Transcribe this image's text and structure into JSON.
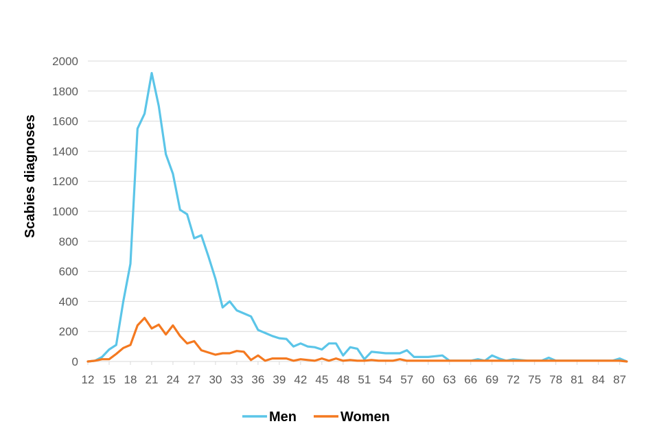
{
  "chart_data": {
    "type": "line",
    "title": "",
    "xlabel": "",
    "ylabel": "Scabies diagnoses",
    "ylim": [
      0,
      2000
    ],
    "yticks": [
      0,
      200,
      400,
      600,
      800,
      1000,
      1200,
      1400,
      1600,
      1800,
      2000
    ],
    "xlim": [
      12,
      88
    ],
    "xticks": [
      12,
      15,
      18,
      21,
      24,
      27,
      30,
      33,
      36,
      39,
      42,
      45,
      48,
      51,
      54,
      57,
      60,
      63,
      66,
      69,
      72,
      75,
      78,
      81,
      84,
      87
    ],
    "grid": true,
    "legend_position": "bottom",
    "series": [
      {
        "name": "Men",
        "color": "#5bc5e8",
        "x": [
          12,
          13,
          14,
          15,
          16,
          17,
          18,
          19,
          20,
          21,
          22,
          23,
          24,
          25,
          26,
          27,
          28,
          29,
          30,
          31,
          32,
          33,
          34,
          35,
          36,
          37,
          38,
          39,
          40,
          41,
          42,
          43,
          44,
          45,
          46,
          47,
          48,
          49,
          50,
          51,
          52,
          53,
          54,
          55,
          56,
          57,
          58,
          59,
          60,
          61,
          62,
          63,
          64,
          65,
          66,
          67,
          68,
          69,
          70,
          71,
          72,
          73,
          74,
          75,
          76,
          77,
          78,
          79,
          80,
          81,
          82,
          83,
          84,
          85,
          86,
          87,
          88
        ],
        "y": [
          0,
          5,
          30,
          80,
          110,
          400,
          650,
          1550,
          1650,
          1920,
          1700,
          1380,
          1250,
          1010,
          980,
          820,
          840,
          700,
          550,
          360,
          400,
          340,
          320,
          300,
          210,
          190,
          170,
          155,
          150,
          100,
          120,
          100,
          95,
          80,
          120,
          120,
          40,
          95,
          85,
          15,
          65,
          60,
          55,
          55,
          55,
          75,
          30,
          30,
          30,
          35,
          40,
          5,
          5,
          5,
          5,
          15,
          5,
          40,
          20,
          5,
          15,
          10,
          5,
          5,
          5,
          25,
          5,
          5,
          5,
          5,
          5,
          5,
          5,
          5,
          5,
          20,
          0
        ]
      },
      {
        "name": "Women",
        "color": "#f47920",
        "x": [
          12,
          13,
          14,
          15,
          16,
          17,
          18,
          19,
          20,
          21,
          22,
          23,
          24,
          25,
          26,
          27,
          28,
          29,
          30,
          31,
          32,
          33,
          34,
          35,
          36,
          37,
          38,
          39,
          40,
          41,
          42,
          43,
          44,
          45,
          46,
          47,
          48,
          49,
          50,
          51,
          52,
          53,
          54,
          55,
          56,
          57,
          58,
          59,
          60,
          61,
          62,
          63,
          64,
          65,
          66,
          67,
          68,
          69,
          70,
          71,
          72,
          73,
          74,
          75,
          76,
          77,
          78,
          79,
          80,
          81,
          82,
          83,
          84,
          85,
          86,
          87,
          88
        ],
        "y": [
          0,
          5,
          15,
          15,
          50,
          90,
          110,
          240,
          290,
          220,
          245,
          180,
          240,
          170,
          120,
          135,
          75,
          60,
          45,
          55,
          55,
          70,
          65,
          10,
          40,
          5,
          20,
          20,
          20,
          5,
          15,
          10,
          5,
          20,
          5,
          20,
          5,
          10,
          5,
          5,
          10,
          5,
          5,
          5,
          15,
          5,
          5,
          5,
          5,
          5,
          5,
          5,
          5,
          5,
          5,
          5,
          5,
          5,
          5,
          5,
          5,
          5,
          5,
          5,
          5,
          5,
          5,
          5,
          5,
          5,
          5,
          5,
          5,
          5,
          5,
          5,
          0
        ]
      }
    ]
  }
}
